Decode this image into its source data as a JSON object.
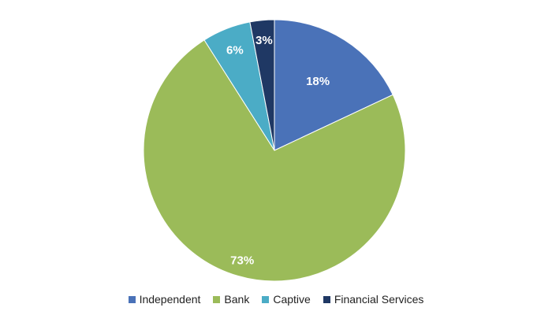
{
  "chart_data": {
    "type": "pie",
    "title": "",
    "start_angle_deg": 0,
    "direction": "clockwise",
    "slices": [
      {
        "label": "Independent",
        "value": 18,
        "display": "18%",
        "color": "#4A72B8",
        "label_color": "#ffffff"
      },
      {
        "label": "Bank",
        "value": 73,
        "display": "73%",
        "color": "#9BBB59",
        "label_color": "#ffffff"
      },
      {
        "label": "Captive",
        "value": 6,
        "display": "6%",
        "color": "#4BACC6",
        "label_color": "#ffffff"
      },
      {
        "label": "Financial Services",
        "value": 3,
        "display": "3%",
        "color": "#1F3864",
        "label_color": "#ffffff"
      }
    ],
    "legend_position": "bottom"
  }
}
